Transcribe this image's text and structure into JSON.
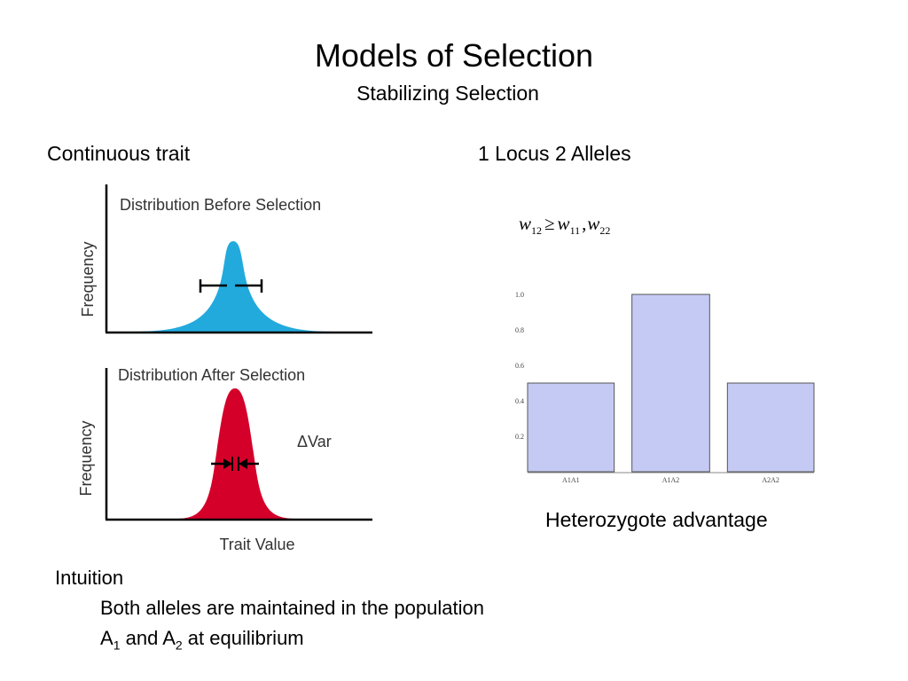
{
  "slide": {
    "title": "Models of Selection",
    "subtitle": "Stabilizing Selection"
  },
  "left_panel": {
    "heading": "Continuous trait",
    "plot_before": {
      "title": "Distribution Before Selection",
      "ylabel": "Frequency",
      "fill_color": "#22aadd"
    },
    "plot_after": {
      "title": "Distribution After Selection",
      "ylabel": "Frequency",
      "xlabel": "Trait Value",
      "annotation": "ΔVar",
      "fill_color": "#d4002a"
    }
  },
  "right_panel": {
    "heading": "1 Locus 2 Alleles",
    "equation": {
      "w12": "w",
      "w12_sub": "12",
      "op": "≥",
      "w11": "w",
      "w11_sub": "11",
      "sep": ",",
      "w22": "w",
      "w22_sub": "22"
    },
    "caption": "Heterozygote advantage"
  },
  "chart_data": {
    "type": "bar",
    "categories": [
      "A1A1",
      "A1A2",
      "A2A2"
    ],
    "values": [
      0.5,
      1.0,
      0.5
    ],
    "ylim": [
      0,
      1.0
    ],
    "yticks": [
      "0.2",
      "0.4",
      "0.6",
      "0.8",
      "1.0"
    ],
    "bar_color": "#c5caf4",
    "bar_stroke": "#555555"
  },
  "intuition": {
    "heading": "Intuition",
    "line1": "Both alleles are maintained in the population",
    "line2_a": "A",
    "line2_sub1": "1",
    "line2_b": " and A",
    "line2_sub2": "2",
    "line2_c": " at equilibrium"
  }
}
